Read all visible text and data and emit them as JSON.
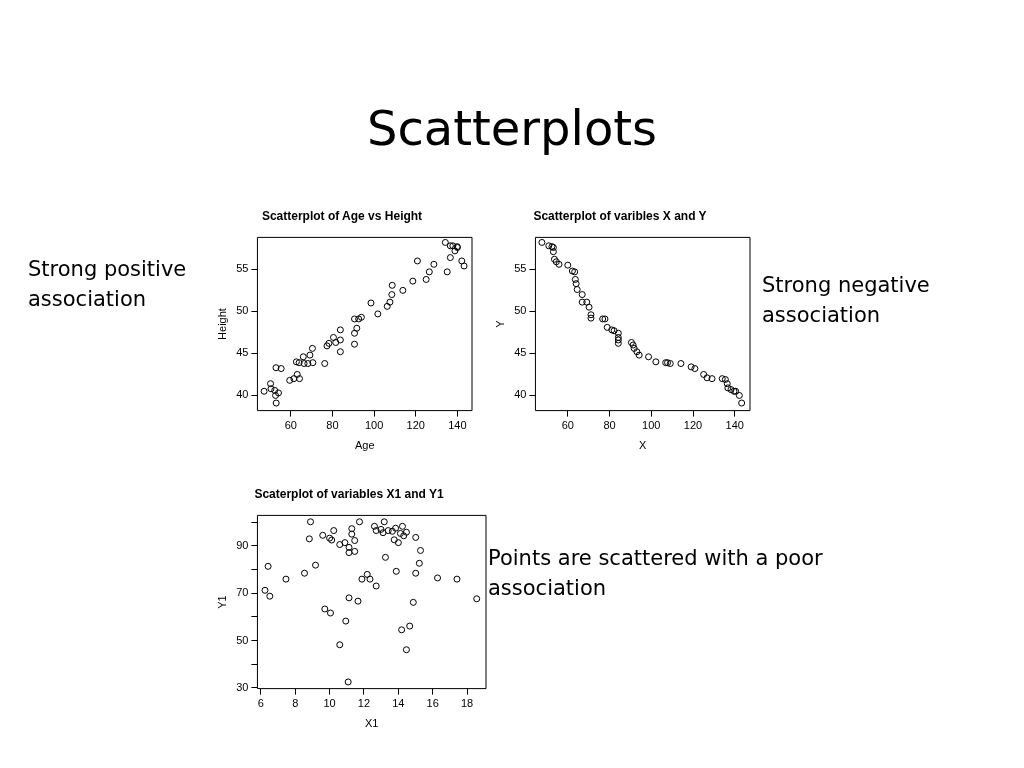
{
  "chart_data": [
    {
      "type": "other",
      "title": "Scatterplots"
    },
    {
      "type": "scatter",
      "title": "Scatterplot of Age vs Height",
      "xlabel": "Age",
      "ylabel": "Height",
      "xlim": [
        44,
        147
      ],
      "ylim": [
        38.2,
        58.8
      ],
      "xticks": [
        60,
        80,
        100,
        120,
        140
      ],
      "yticks": [
        40,
        45,
        50,
        55
      ],
      "grid": false,
      "legend": false,
      "marker": "circle",
      "annotations": [
        "Strong positive association"
      ],
      "series": [
        {
          "color": "#000000",
          "x": [
            47.2,
            50.3,
            50.5,
            52.3,
            52.7,
            54.1,
            53.0,
            52.9,
            55.4,
            59.5,
            61.5,
            63.1,
            64.2,
            62.7,
            64.0,
            66.0,
            66.4,
            68.2,
            69.2,
            70.4,
            70.6,
            76.3,
            77.4,
            78.3,
            80.5,
            81.6,
            83.8,
            83.8,
            83.8,
            90.6,
            90.6,
            91.7,
            90.6,
            92.6,
            93.9,
            98.5,
            101.8,
            106.3,
            107.6,
            108.5,
            108.7,
            113.8,
            118.6,
            120.8,
            125.0,
            126.5,
            128.7,
            134.2,
            135.1,
            136.6,
            136.6,
            137.8,
            138.8,
            140.0,
            139.9,
            142.1,
            143.2
          ],
          "values": [
            40.5,
            41.4,
            40.8,
            40.6,
            40.0,
            40.3,
            39.1,
            43.3,
            43.2,
            41.8,
            42.0,
            42.5,
            42.0,
            44.0,
            43.9,
            44.6,
            43.8,
            43.8,
            44.8,
            45.6,
            43.9,
            43.8,
            45.9,
            46.2,
            46.9,
            46.3,
            45.2,
            46.6,
            47.8,
            46.1,
            47.4,
            48.0,
            49.1,
            49.1,
            49.3,
            51.0,
            49.7,
            50.6,
            51.1,
            52.0,
            53.1,
            52.5,
            53.6,
            56.0,
            53.8,
            54.7,
            55.6,
            58.2,
            54.7,
            56.4,
            57.8,
            57.8,
            57.2,
            57.6,
            57.7,
            56.0,
            55.4
          ]
        }
      ]
    },
    {
      "type": "scatter",
      "title": "Scatterplot of varibles X and Y",
      "xlabel": "X",
      "ylabel": "Y",
      "xlim": [
        44.5,
        147.3
      ],
      "ylim": [
        38.2,
        58.8
      ],
      "xticks": [
        60,
        80,
        100,
        120,
        140
      ],
      "yticks": [
        40,
        45,
        50,
        55
      ],
      "grid": false,
      "legend": false,
      "marker": "circle",
      "annotations": [
        "Strong negative association"
      ],
      "series": [
        {
          "color": "#000000",
          "x": [
            47.6,
            50.9,
            52.4,
            53.1,
            53.1,
            53.6,
            54.5,
            55.8,
            60.0,
            62.2,
            63.3,
            63.6,
            64.0,
            64.5,
            66.9,
            66.9,
            69.1,
            70.2,
            71.1,
            71.1,
            76.7,
            77.8,
            78.9,
            81.1,
            82.2,
            84.2,
            84.2,
            84.2,
            84.2,
            90.5,
            91.3,
            91.8,
            93.1,
            94.2,
            98.7,
            102.2,
            106.9,
            107.8,
            109.1,
            114.2,
            119.1,
            120.9,
            125.1,
            126.7,
            129.1,
            134.0,
            135.5,
            136.4,
            136.7,
            138.2,
            139.6,
            140.4,
            142.2,
            143.3
          ],
          "values": [
            58.2,
            57.8,
            57.7,
            57.6,
            57.1,
            56.2,
            55.9,
            55.6,
            55.5,
            54.8,
            54.7,
            53.8,
            53.3,
            52.6,
            52.0,
            51.1,
            51.1,
            50.5,
            49.6,
            49.2,
            49.1,
            49.1,
            48.1,
            47.8,
            47.7,
            47.4,
            46.9,
            46.6,
            46.2,
            46.3,
            46.0,
            45.6,
            45.2,
            44.8,
            44.6,
            44.0,
            43.9,
            43.9,
            43.8,
            43.8,
            43.4,
            43.2,
            42.5,
            42.1,
            42.0,
            42.0,
            41.9,
            41.4,
            40.9,
            40.7,
            40.5,
            40.5,
            40.0,
            39.1
          ]
        }
      ]
    },
    {
      "type": "scatter",
      "title": "Scaterplot of variables X1 and Y1",
      "xlabel": "X1",
      "ylabel": "Y1",
      "xlim": [
        5.8,
        19.1
      ],
      "ylim": [
        29.7,
        102.8
      ],
      "xticks": [
        6,
        8,
        10,
        12,
        14,
        16,
        18
      ],
      "yticks": [
        30,
        {
          "value": 40,
          "label": null
        },
        50,
        {
          "value": 60,
          "label": null
        },
        70,
        {
          "value": 80,
          "label": null
        },
        90,
        {
          "value": 100,
          "label": null
        }
      ],
      "grid": false,
      "legend": false,
      "marker": "circle",
      "annotations": [
        "Points are scattered with a poor association"
      ],
      "series": [
        {
          "color": "#000000",
          "x": [
            6.24,
            6.52,
            6.42,
            7.46,
            8.54,
            8.82,
            8.89,
            9.18,
            9.6,
            9.72,
            10.05,
            10.0,
            10.12,
            10.24,
            10.59,
            10.59,
            10.89,
            10.94,
            11.13,
            11.13,
            11.08,
            11.13,
            11.29,
            11.29,
            11.46,
            11.46,
            11.65,
            11.74,
            11.88,
            12.19,
            12.35,
            12.71,
            12.61,
            12.71,
            12.99,
            13.11,
            13.18,
            13.25,
            13.41,
            13.65,
            13.76,
            13.84,
            13.88,
            14.0,
            14.12,
            14.24,
            14.31,
            14.47,
            14.19,
            14.47,
            14.66,
            14.87,
            15.01,
            15.01,
            15.22,
            15.29,
            16.28,
            17.41,
            18.56
          ],
          "values": [
            71.2,
            68.7,
            81.3,
            75.9,
            78.4,
            92.9,
            100.1,
            81.8,
            94.4,
            63.3,
            61.6,
            93.2,
            92.4,
            96.4,
            48.2,
            90.5,
            91.3,
            58.2,
            89.3,
            87.1,
            32.5,
            68.0,
            97.2,
            94.9,
            92.2,
            87.6,
            66.6,
            100.1,
            75.9,
            77.9,
            75.9,
            73.0,
            98.2,
            96.4,
            96.9,
            95.5,
            100.1,
            85.1,
            96.4,
            96.1,
            92.5,
            97.4,
            79.2,
            91.3,
            95.2,
            98.2,
            94.2,
            95.7,
            54.5,
            46.1,
            56.1,
            66.1,
            93.5,
            78.4,
            82.6,
            88.0,
            76.4,
            75.9,
            67.6
          ]
        }
      ]
    }
  ]
}
